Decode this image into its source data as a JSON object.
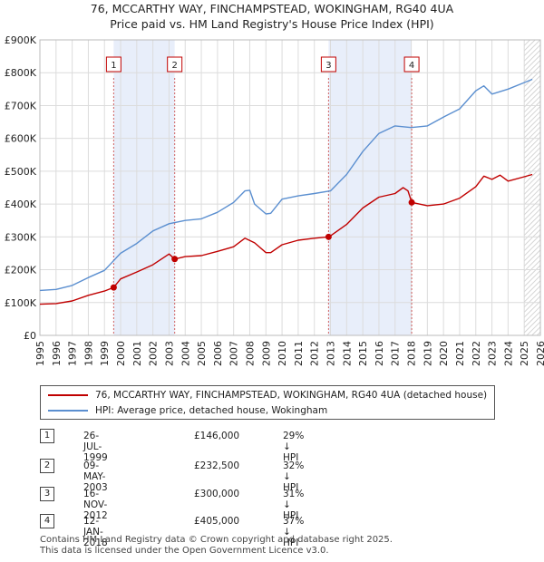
{
  "title_line1": "76, MCCARTHY WAY, FINCHAMPSTEAD, WOKINGHAM, RG40 4UA",
  "title_line2": "Price paid vs. HM Land Registry's House Price Index (HPI)",
  "chart_data": {
    "type": "line",
    "title": "76, MCCARTHY WAY, FINCHAMPSTEAD, WOKINGHAM, RG40 4UA — Price paid vs. HM Land Registry's House Price Index (HPI)",
    "xlim": [
      1995,
      2026
    ],
    "ylim": [
      0,
      900000
    ],
    "yticks": [
      {
        "value": 0,
        "label": "£0"
      },
      {
        "value": 100000,
        "label": "£100K"
      },
      {
        "value": 200000,
        "label": "£200K"
      },
      {
        "value": 300000,
        "label": "£300K"
      },
      {
        "value": 400000,
        "label": "£400K"
      },
      {
        "value": 500000,
        "label": "£500K"
      },
      {
        "value": 600000,
        "label": "£600K"
      },
      {
        "value": 700000,
        "label": "£700K"
      },
      {
        "value": 800000,
        "label": "£800K"
      },
      {
        "value": 900000,
        "label": "£900K"
      }
    ],
    "xticks": [
      "1995",
      "1996",
      "1997",
      "1998",
      "1999",
      "2000",
      "2001",
      "2002",
      "2003",
      "2004",
      "2005",
      "2006",
      "2007",
      "2008",
      "2009",
      "2010",
      "2011",
      "2012",
      "2013",
      "2014",
      "2015",
      "2016",
      "2017",
      "2018",
      "2019",
      "2020",
      "2021",
      "2022",
      "2023",
      "2024",
      "2025",
      "2026"
    ],
    "grid": true,
    "shaded_periods": [
      [
        1999.57,
        2003.35
      ],
      [
        2012.88,
        2018.03
      ]
    ],
    "forecast_from": 2025.0,
    "series": [
      {
        "name": "76, MCCARTHY WAY, FINCHAMPSTEAD, WOKINGHAM, RG40 4UA (detached house)",
        "color": "#c00000",
        "x": [
          1995,
          1996,
          1997,
          1998,
          1999,
          1999.57,
          2000,
          2001,
          2002,
          2003,
          2003.35,
          2004,
          2005,
          2006,
          2007,
          2007.7,
          2008.3,
          2009,
          2009.3,
          2010,
          2011,
          2012,
          2012.88,
          2013,
          2014,
          2015,
          2016,
          2017,
          2017.5,
          2017.8,
          2018.03,
          2019,
          2020,
          2021,
          2022,
          2022.5,
          2023,
          2023.5,
          2024,
          2025,
          2025.5
        ],
        "y": [
          95000,
          97000,
          105000,
          122000,
          135000,
          146000,
          172000,
          193000,
          215000,
          248000,
          232500,
          240000,
          243000,
          256000,
          270000,
          296000,
          282000,
          252000,
          252000,
          276000,
          290000,
          296000,
          300000,
          303000,
          338000,
          388000,
          421000,
          432000,
          450000,
          440000,
          405000,
          395000,
          400000,
          418000,
          453000,
          485000,
          475000,
          488000,
          470000,
          483000,
          490000
        ]
      },
      {
        "name": "HPI: Average price, detached house, Wokingham",
        "color": "#5b8fd0",
        "x": [
          1995,
          1996,
          1997,
          1998,
          1999,
          2000,
          2001,
          2002,
          2003,
          2004,
          2005,
          2006,
          2007,
          2007.7,
          2008,
          2008.3,
          2009,
          2009.3,
          2010,
          2011,
          2012,
          2013,
          2014,
          2015,
          2016,
          2017,
          2018,
          2019,
          2020,
          2021,
          2022,
          2022.5,
          2023,
          2024,
          2025,
          2025.5
        ],
        "y": [
          137000,
          140000,
          152000,
          176000,
          198000,
          250000,
          280000,
          318000,
          340000,
          350000,
          355000,
          375000,
          405000,
          440000,
          442000,
          400000,
          370000,
          372000,
          415000,
          425000,
          432000,
          440000,
          490000,
          560000,
          615000,
          638000,
          633000,
          638000,
          665000,
          690000,
          745000,
          760000,
          735000,
          750000,
          770000,
          780000
        ]
      }
    ],
    "sales": [
      {
        "label": "1",
        "x": 1999.57,
        "price": 146000
      },
      {
        "label": "2",
        "x": 2003.35,
        "price": 232500
      },
      {
        "label": "3",
        "x": 2012.88,
        "price": 300000
      },
      {
        "label": "4",
        "x": 2018.03,
        "price": 405000
      }
    ]
  },
  "legend": {
    "red_label": "76, MCCARTHY WAY, FINCHAMPSTEAD, WOKINGHAM, RG40 4UA (detached house)",
    "blue_label": "HPI: Average price, detached house, Wokingham"
  },
  "table": [
    {
      "num": "1",
      "date": "26-JUL-1999",
      "price": "£146,000",
      "pct": "29% ↓ HPI"
    },
    {
      "num": "2",
      "date": "09-MAY-2003",
      "price": "£232,500",
      "pct": "32% ↓ HPI"
    },
    {
      "num": "3",
      "date": "16-NOV-2012",
      "price": "£300,000",
      "pct": "31% ↓ HPI"
    },
    {
      "num": "4",
      "date": "12-JAN-2018",
      "price": "£405,000",
      "pct": "37% ↓ HPI"
    }
  ],
  "footer_line1": "Contains HM Land Registry data © Crown copyright and database right 2025.",
  "footer_line2": "This data is licensed under the Open Government Licence v3.0."
}
